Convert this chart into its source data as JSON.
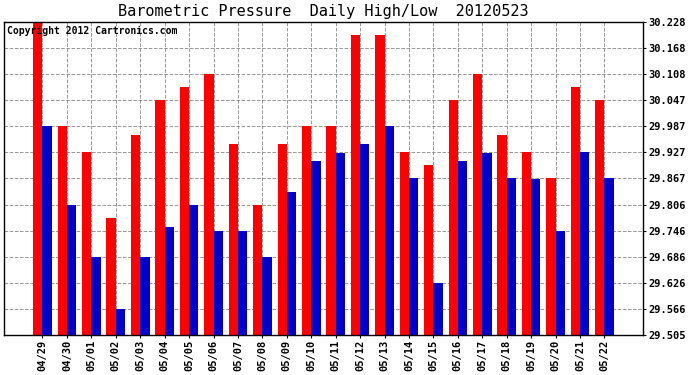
{
  "title": "Barometric Pressure  Daily High/Low  20120523",
  "copyright": "Copyright 2012 Cartronics.com",
  "dates": [
    "04/29",
    "04/30",
    "05/01",
    "05/02",
    "05/03",
    "05/04",
    "05/05",
    "05/06",
    "05/07",
    "05/08",
    "05/09",
    "05/10",
    "05/11",
    "05/12",
    "05/13",
    "05/14",
    "05/15",
    "05/16",
    "05/17",
    "05/18",
    "05/19",
    "05/20",
    "05/21",
    "05/22"
  ],
  "highs": [
    30.228,
    29.987,
    29.927,
    29.776,
    29.967,
    30.047,
    30.078,
    30.108,
    29.947,
    29.806,
    29.947,
    29.987,
    29.987,
    30.198,
    30.198,
    29.927,
    29.897,
    30.047,
    30.108,
    29.967,
    29.927,
    29.867,
    30.078,
    30.047
  ],
  "lows": [
    29.987,
    29.806,
    29.686,
    29.566,
    29.686,
    29.756,
    29.806,
    29.746,
    29.746,
    29.686,
    29.836,
    29.906,
    29.926,
    29.946,
    29.987,
    29.867,
    29.626,
    29.906,
    29.926,
    29.867,
    29.866,
    29.746,
    29.927,
    29.867
  ],
  "ymin": 29.505,
  "ymax": 30.228,
  "yticks": [
    29.505,
    29.566,
    29.626,
    29.686,
    29.746,
    29.806,
    29.867,
    29.927,
    29.987,
    30.047,
    30.108,
    30.168,
    30.228
  ],
  "high_color": "#ff0000",
  "low_color": "#0000cc",
  "bg_color": "#ffffff",
  "title_fontsize": 11,
  "tick_fontsize": 7.5,
  "copyright_fontsize": 7
}
